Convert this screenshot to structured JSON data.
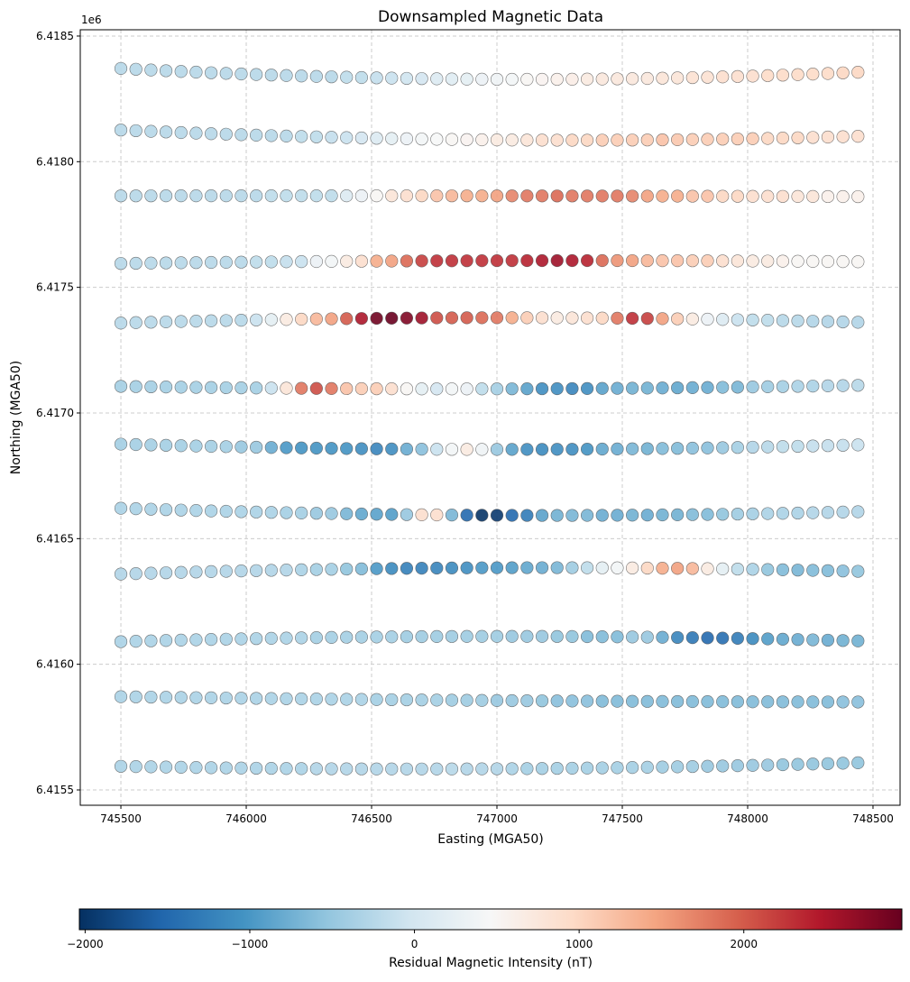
{
  "chart_data": {
    "type": "scatter",
    "title": "Downsampled Magnetic Data",
    "xlabel": "Easting (MGA50)",
    "ylabel": "Northing (MGA50)",
    "y_offset_label": "1e6",
    "xlim": [
      745338,
      748608
    ],
    "ylim": [
      6415439,
      6418525
    ],
    "x_ticks": [
      745500,
      746000,
      746500,
      747000,
      747500,
      748000,
      748500
    ],
    "x_tick_labels": [
      "745500",
      "746000",
      "746500",
      "747000",
      "747500",
      "748000",
      "748500"
    ],
    "y_ticks": [
      6415500,
      6416000,
      6416500,
      6417000,
      6417500,
      6418000,
      6418500
    ],
    "y_tick_labels": [
      "6.4155",
      "6.4160",
      "6.4165",
      "6.4170",
      "6.4175",
      "6.4180",
      "6.4185"
    ],
    "grid": true,
    "colormap": "RdBu_r",
    "colormap_stops": [
      "#053061",
      "#2166ac",
      "#4393c3",
      "#92c5de",
      "#d1e5f0",
      "#f7f7f7",
      "#fddbc7",
      "#f4a582",
      "#d6604d",
      "#b2182b",
      "#67001f"
    ],
    "marker_edge_color": "#555555",
    "colorbar": {
      "label": "Residual Magnetic Intensity (nT)",
      "orientation": "horizontal",
      "placement": "bottom",
      "vmin": -2035,
      "vmax": 2960,
      "ticks": [
        -2000,
        -1000,
        0,
        1000,
        2000
      ],
      "tick_labels": [
        "−2000",
        "−1000",
        "0",
        "1000",
        "2000"
      ]
    },
    "easting": [
      745500,
      745560,
      745620,
      745680,
      745740,
      745800,
      745860,
      745920,
      745980,
      746040,
      746100,
      746160,
      746220,
      746280,
      746340,
      746400,
      746460,
      746520,
      746580,
      746640,
      746700,
      746760,
      746820,
      746880,
      746940,
      747000,
      747060,
      747120,
      747180,
      747240,
      747300,
      747360,
      747420,
      747480,
      747540,
      747600,
      747660,
      747720,
      747780,
      747840,
      747900,
      747960,
      748020,
      748080,
      748140,
      748200,
      748260,
      748320,
      748380,
      748440
    ],
    "lines": [
      {
        "northing_west": 6418371,
        "northing_centre": 6418328,
        "northing_east": 6418356,
        "values": [
          -250,
          -250,
          -250,
          -250,
          -250,
          -250,
          -250,
          -250,
          -250,
          -250,
          -250,
          -250,
          -250,
          -250,
          -250,
          -200,
          -200,
          -150,
          -100,
          -50,
          0,
          100,
          150,
          200,
          300,
          350,
          400,
          500,
          550,
          600,
          650,
          700,
          750,
          750,
          750,
          750,
          800,
          800,
          850,
          850,
          900,
          900,
          900,
          950,
          950,
          950,
          950,
          950,
          1000,
          1000
        ]
      },
      {
        "northing_west": 6418126,
        "northing_centre": 6418087,
        "northing_east": 6418101,
        "values": [
          -250,
          -250,
          -250,
          -250,
          -250,
          -250,
          -250,
          -250,
          -250,
          -250,
          -250,
          -250,
          -200,
          -200,
          -150,
          -100,
          0,
          100,
          200,
          300,
          400,
          450,
          500,
          550,
          600,
          700,
          700,
          800,
          900,
          900,
          1000,
          1000,
          1100,
          1100,
          1100,
          1100,
          1200,
          1150,
          1100,
          1100,
          1100,
          1100,
          1100,
          1000,
          1000,
          1000,
          900,
          900,
          900,
          900
        ]
      },
      {
        "northing_west": 6417864,
        "northing_centre": 6417864,
        "northing_east": 6417861,
        "values": [
          -250,
          -250,
          -250,
          -250,
          -250,
          -250,
          -250,
          -250,
          -250,
          -250,
          -200,
          -200,
          -200,
          -200,
          -200,
          100,
          300,
          500,
          800,
          900,
          1000,
          1200,
          1300,
          1400,
          1400,
          1500,
          1700,
          1800,
          1800,
          1900,
          1800,
          1800,
          1800,
          1800,
          1700,
          1500,
          1400,
          1400,
          1200,
          1200,
          1000,
          1000,
          900,
          900,
          900,
          800,
          800,
          600,
          600,
          600
        ]
      },
      {
        "northing_west": 6417595,
        "northing_centre": 6417606,
        "northing_east": 6417602,
        "values": [
          -250,
          -250,
          -250,
          -250,
          -250,
          -250,
          -250,
          -250,
          -250,
          -200,
          -200,
          -150,
          -100,
          300,
          400,
          700,
          900,
          1400,
          1500,
          1900,
          2200,
          2300,
          2300,
          2300,
          2300,
          2300,
          2300,
          2400,
          2500,
          2600,
          2500,
          2400,
          1900,
          1600,
          1500,
          1300,
          1200,
          1200,
          1100,
          1100,
          900,
          800,
          700,
          700,
          600,
          500,
          500,
          500,
          500,
          500
        ]
      },
      {
        "northing_west": 6417358,
        "northing_centre": 6417379,
        "northing_east": 6417361,
        "values": [
          -250,
          -250,
          -250,
          -250,
          -250,
          -250,
          -250,
          -250,
          -250,
          -100,
          200,
          700,
          1000,
          1300,
          1500,
          2000,
          2500,
          2900,
          2950,
          2800,
          2600,
          2100,
          2000,
          2000,
          1900,
          1800,
          1400,
          1100,
          900,
          700,
          800,
          900,
          1000,
          1800,
          2300,
          2200,
          1500,
          1100,
          700,
          300,
          100,
          -100,
          -200,
          -200,
          -250,
          -250,
          -300,
          -300,
          -300,
          -300
        ]
      },
      {
        "northing_west": 6417106,
        "northing_centre": 6417096,
        "northing_east": 6417110,
        "values": [
          -400,
          -400,
          -400,
          -400,
          -400,
          -400,
          -400,
          -400,
          -400,
          -400,
          -100,
          800,
          1800,
          2100,
          1800,
          1200,
          1100,
          1100,
          900,
          500,
          200,
          0,
          400,
          300,
          -200,
          -400,
          -700,
          -900,
          -1100,
          -1100,
          -1200,
          -1100,
          -900,
          -800,
          -750,
          -750,
          -800,
          -850,
          -800,
          -800,
          -650,
          -700,
          -500,
          -450,
          -400,
          -350,
          -350,
          -300,
          -300,
          -250
        ]
      },
      {
        "northing_west": 6416876,
        "northing_centre": 6416855,
        "northing_east": 6416873,
        "values": [
          -400,
          -400,
          -400,
          -400,
          -400,
          -400,
          -400,
          -400,
          -500,
          -500,
          -800,
          -1000,
          -1050,
          -1050,
          -1050,
          -1050,
          -1100,
          -1200,
          -1100,
          -800,
          -600,
          -100,
          400,
          700,
          350,
          -500,
          -900,
          -1100,
          -1150,
          -1100,
          -1100,
          -1050,
          -850,
          -800,
          -700,
          -750,
          -650,
          -650,
          -600,
          -600,
          -500,
          -400,
          -300,
          -250,
          -200,
          -200,
          -150,
          -150,
          -150,
          -100
        ]
      },
      {
        "northing_west": 6416621,
        "northing_centre": 6416593,
        "northing_east": 6416607,
        "values": [
          -350,
          -350,
          -350,
          -350,
          -350,
          -350,
          -350,
          -350,
          -350,
          -350,
          -350,
          -400,
          -400,
          -500,
          -500,
          -700,
          -850,
          -900,
          -950,
          -500,
          900,
          900,
          -700,
          -1500,
          -2000,
          -1950,
          -1500,
          -1300,
          -900,
          -750,
          -700,
          -700,
          -800,
          -800,
          -750,
          -800,
          -750,
          -750,
          -650,
          -650,
          -550,
          -450,
          -400,
          -350,
          -350,
          -350,
          -300,
          -300,
          -300,
          -300
        ]
      },
      {
        "northing_west": 6416359,
        "northing_centre": 6416384,
        "northing_east": 6416370,
        "values": [
          -300,
          -300,
          -300,
          -300,
          -300,
          -300,
          -300,
          -300,
          -300,
          -300,
          -300,
          -300,
          -350,
          -400,
          -400,
          -550,
          -650,
          -1000,
          -1150,
          -1250,
          -1250,
          -1200,
          -1150,
          -1100,
          -1000,
          -1000,
          -950,
          -850,
          -800,
          -700,
          -450,
          -200,
          200,
          400,
          700,
          1000,
          1400,
          1500,
          1300,
          700,
          200,
          -200,
          -350,
          -550,
          -650,
          -700,
          -650,
          -650,
          -600,
          -550
        ]
      },
      {
        "northing_west": 6416090,
        "northing_centre": 6416111,
        "northing_east": 6416093,
        "values": [
          -350,
          -350,
          -350,
          -350,
          -350,
          -350,
          -350,
          -350,
          -350,
          -350,
          -350,
          -350,
          -350,
          -400,
          -400,
          -400,
          -400,
          -400,
          -400,
          -450,
          -450,
          -450,
          -450,
          -450,
          -450,
          -450,
          -500,
          -500,
          -500,
          -550,
          -550,
          -650,
          -650,
          -650,
          -500,
          -500,
          -800,
          -1200,
          -1350,
          -1500,
          -1450,
          -1300,
          -1150,
          -950,
          -850,
          -800,
          -700,
          -800,
          -750,
          -750
        ]
      },
      {
        "northing_west": 6415871,
        "northing_centre": 6415856,
        "northing_east": 6415850,
        "values": [
          -350,
          -350,
          -350,
          -350,
          -350,
          -350,
          -350,
          -350,
          -350,
          -350,
          -350,
          -350,
          -350,
          -350,
          -350,
          -350,
          -350,
          -400,
          -400,
          -400,
          -400,
          -400,
          -450,
          -450,
          -450,
          -500,
          -500,
          -500,
          -550,
          -600,
          -600,
          -600,
          -650,
          -650,
          -650,
          -650,
          -650,
          -650,
          -650,
          -650,
          -650,
          -650,
          -650,
          -650,
          -650,
          -650,
          -650,
          -650,
          -600,
          -600
        ]
      },
      {
        "northing_west": 6415594,
        "northing_centre": 6415584,
        "northing_east": 6415608,
        "values": [
          -350,
          -350,
          -350,
          -350,
          -350,
          -350,
          -350,
          -350,
          -350,
          -350,
          -350,
          -350,
          -350,
          -300,
          -300,
          -300,
          -300,
          -300,
          -300,
          -300,
          -300,
          -300,
          -250,
          -300,
          -300,
          -300,
          -350,
          -400,
          -400,
          -400,
          -400,
          -400,
          -400,
          -400,
          -400,
          -400,
          -450,
          -450,
          -450,
          -500,
          -500,
          -500,
          -500,
          -500,
          -550,
          -550,
          -550,
          -550,
          -550,
          -550
        ]
      }
    ]
  }
}
